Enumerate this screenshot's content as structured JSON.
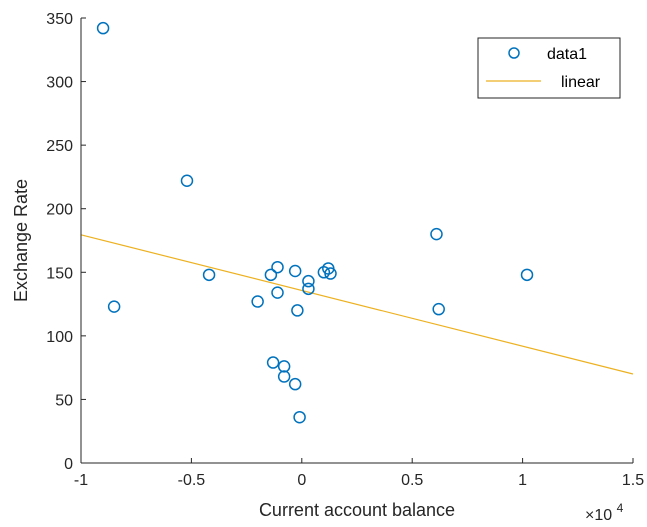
{
  "chart_data": {
    "type": "scatter",
    "xlabel": "Current account balance",
    "ylabel": "Exchange Rate",
    "x_exponent_base": "×10",
    "x_exponent_power": "4",
    "xlim": [
      -1,
      1.5
    ],
    "ylim": [
      0,
      350
    ],
    "xticks": [
      -1,
      -0.5,
      0,
      0.5,
      1,
      1.5
    ],
    "xtick_labels": [
      "-1",
      "-0.5",
      "0",
      "0.5",
      "1",
      "1.5"
    ],
    "yticks": [
      0,
      50,
      100,
      150,
      200,
      250,
      300,
      350
    ],
    "ytick_labels": [
      "0",
      "50",
      "100",
      "150",
      "200",
      "250",
      "300",
      "350"
    ],
    "grid": false,
    "legend_position": "top-right",
    "series": [
      {
        "name": "data1",
        "kind": "scatter",
        "marker": "circle",
        "color": "#0072BD",
        "x": [
          -0.9,
          -0.85,
          -0.52,
          -0.42,
          -0.2,
          -0.14,
          -0.11,
          -0.11,
          -0.13,
          -0.08,
          -0.08,
          -0.03,
          -0.02,
          -0.03,
          -0.01,
          0.03,
          0.03,
          0.1,
          0.12,
          0.13,
          0.61,
          0.62,
          1.02
        ],
        "y": [
          342,
          123,
          222,
          148,
          127,
          148,
          154,
          134,
          79,
          76,
          68,
          151,
          120,
          62,
          36,
          143,
          137,
          150,
          153,
          149,
          180,
          121,
          148
        ]
      },
      {
        "name": "linear",
        "kind": "line",
        "color": "#EDB120",
        "x": [
          -1,
          1.5
        ],
        "y": [
          179.5,
          70
        ]
      }
    ]
  }
}
